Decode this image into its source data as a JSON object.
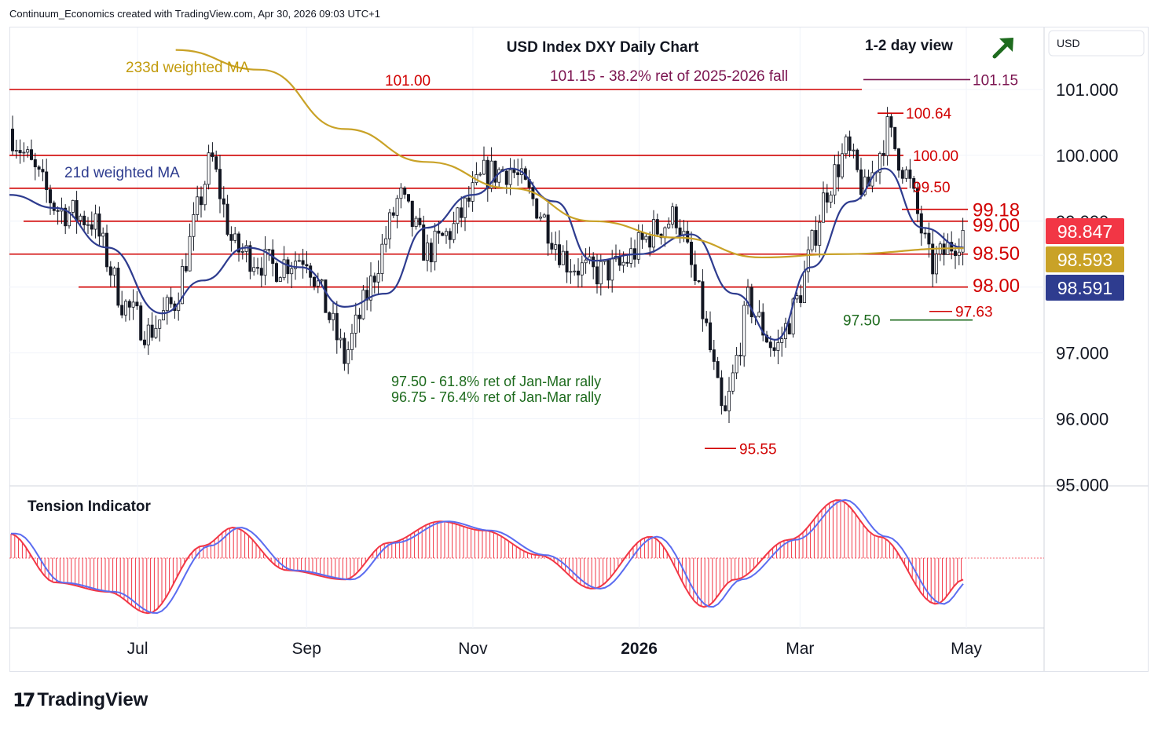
{
  "header": {
    "caption": "Continuum_Economics created with TradingView.com, Apr 30, 2026 09:03 UTC+1"
  },
  "brand": {
    "logo_mark": "17",
    "name": "TradingView"
  },
  "chart_data": {
    "type": "candlestick",
    "title": "USD Index DXY Daily Chart",
    "view_label": "1-2 day view",
    "view_direction_icon": "arrow-up-right-icon",
    "currency_button": "USD",
    "price_axis": {
      "ylim": [
        95.0,
        102.0
      ],
      "ticks": [
        "101.000",
        "100.000",
        "99.000",
        "98.000",
        "97.000",
        "96.000",
        "95.000"
      ]
    },
    "time_axis": {
      "ticks": [
        "Jul",
        "Sep",
        "Nov",
        "2026",
        "Mar",
        "May"
      ],
      "bold": [
        "2026"
      ]
    },
    "price_badges": [
      {
        "label": "98.847",
        "value": 98.847,
        "color": "#f23645",
        "text_color": "#ffffff"
      },
      {
        "label": "98.593",
        "value": 98.593,
        "color": "#c9a227",
        "text_color": "#ffffff"
      },
      {
        "label": "98.591",
        "value": 98.591,
        "color": "#2e3c8f",
        "text_color": "#ffffff"
      }
    ],
    "levels": [
      {
        "value": 101.0,
        "label": "101.00",
        "color": "#d10000"
      },
      {
        "value": 100.0,
        "label": "100.00",
        "color": "#d10000"
      },
      {
        "value": 99.5,
        "label": "99.50",
        "color": "#d10000"
      },
      {
        "value": 99.0,
        "label": "99.00",
        "color": "#d10000"
      },
      {
        "value": 98.5,
        "label": "98.50",
        "color": "#d10000"
      },
      {
        "value": 98.0,
        "label": "98.00",
        "color": "#d10000"
      }
    ],
    "markers": [
      {
        "label": "101.15",
        "value": 101.15,
        "color": "#7b1450"
      },
      {
        "label": "100.64",
        "value": 100.64,
        "color": "#d10000"
      },
      {
        "label": "99.18",
        "value": 99.18,
        "color": "#d10000"
      },
      {
        "label": "97.63",
        "value": 97.63,
        "color": "#d10000"
      },
      {
        "label": "97.50",
        "value": 97.5,
        "color": "#1e6b1e"
      },
      {
        "label": "95.55",
        "value": 95.55,
        "color": "#d10000"
      }
    ],
    "annotations": [
      {
        "text": "101.15 - 38.2% ret of 2025-2026 fall",
        "color": "#7b1450"
      },
      {
        "text": "233d weighted MA",
        "color": "#c29b0c"
      },
      {
        "text": "21d weighted MA",
        "color": "#2e3c8f"
      },
      {
        "text": "97.50 - 61.8% ret of Jan-Mar rally",
        "color": "#1e6b1e"
      },
      {
        "text": "96.75 - 76.4% ret of Jan-Mar rally",
        "color": "#1e6b1e"
      }
    ],
    "series": [
      {
        "name": "21d weighted MA",
        "color": "#2e3c8f",
        "x": [
          "2025-05-15",
          "2025-06-01",
          "2025-06-20",
          "2025-07-10",
          "2025-07-25",
          "2025-08-10",
          "2025-08-30",
          "2025-09-15",
          "2025-09-30",
          "2025-10-15",
          "2025-11-01",
          "2025-11-15",
          "2025-12-01",
          "2025-12-15",
          "2026-01-01",
          "2026-01-20",
          "2026-02-05",
          "2026-02-20",
          "2026-03-05",
          "2026-03-20",
          "2026-04-01",
          "2026-04-15",
          "2026-04-30"
        ],
        "values": [
          99.4,
          99.2,
          98.6,
          97.6,
          98.1,
          98.6,
          98.3,
          97.7,
          97.9,
          98.9,
          99.4,
          99.8,
          99.3,
          98.4,
          98.5,
          98.8,
          97.9,
          97.2,
          98.3,
          99.3,
          99.8,
          98.9,
          98.6
        ]
      },
      {
        "name": "233d weighted MA",
        "color": "#c9a227",
        "x": [
          "2025-07-15",
          "2025-08-15",
          "2025-09-15",
          "2025-10-15",
          "2025-11-15",
          "2025-12-15",
          "2026-01-15",
          "2026-02-15",
          "2026-03-15",
          "2026-04-30"
        ],
        "values": [
          101.6,
          101.3,
          100.4,
          99.9,
          99.5,
          99.0,
          98.75,
          98.45,
          98.5,
          98.59
        ]
      }
    ],
    "tension_indicator": {
      "title": "Tension Indicator",
      "fast_color": "#f23645",
      "slow_color": "#5b6cf0",
      "x": [
        "2025-05-15",
        "2025-06-01",
        "2025-06-20",
        "2025-07-05",
        "2025-07-25",
        "2025-08-05",
        "2025-08-25",
        "2025-09-15",
        "2025-10-01",
        "2025-10-20",
        "2025-11-05",
        "2025-11-25",
        "2025-12-15",
        "2026-01-05",
        "2026-01-25",
        "2026-02-05",
        "2026-02-25",
        "2026-03-15",
        "2026-03-30",
        "2026-04-20",
        "2026-04-30"
      ],
      "values": [
        0.4,
        -0.4,
        -0.55,
        -0.9,
        0.2,
        0.5,
        -0.2,
        -0.35,
        0.25,
        0.6,
        0.45,
        0.05,
        -0.5,
        0.35,
        -0.8,
        -0.35,
        0.3,
        0.95,
        0.35,
        -0.75,
        -0.35
      ]
    }
  }
}
